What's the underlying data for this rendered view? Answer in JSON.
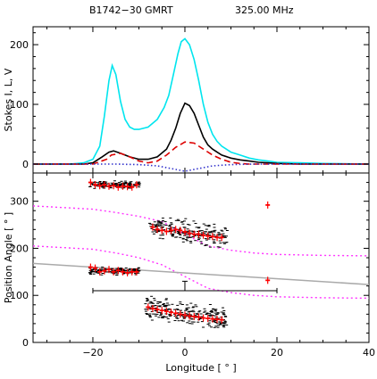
{
  "header": {
    "pulsar": "B1742−30",
    "telescope": "GMRT",
    "frequency": "325.00 MHz"
  },
  "colors": {
    "stokes_i": "#00e5ee",
    "linear": "#000000",
    "circular": "#dd0000",
    "dotted": "#3333cc",
    "pa_points": "#ff0000",
    "model_curves": "#ff33ff",
    "fit_line": "#aaaaaa"
  },
  "chart_data": [
    {
      "type": "line",
      "panel": "profile",
      "xlim": [
        -33,
        40
      ],
      "ylim": [
        -15,
        230
      ],
      "ylabel": "Stokes I, L, V",
      "yticks": [
        0,
        100,
        200
      ],
      "xticks": [
        -20,
        0,
        20,
        40
      ],
      "series": [
        {
          "key": "I",
          "x": [
            -33,
            -25,
            -22,
            -20,
            -18.5,
            -17.5,
            -16.5,
            -15.8,
            -15,
            -14,
            -13,
            -12,
            -11,
            -10,
            -8,
            -6,
            -4.5,
            -3.5,
            -2.5,
            -1.5,
            -0.8,
            0,
            1,
            2,
            3,
            4,
            5,
            6,
            7,
            8,
            9,
            10,
            12,
            14,
            16,
            18,
            20,
            25,
            30,
            40
          ],
          "y": [
            0,
            0,
            2,
            8,
            30,
            80,
            140,
            165,
            150,
            105,
            75,
            62,
            58,
            58,
            62,
            75,
            95,
            115,
            150,
            185,
            205,
            210,
            200,
            175,
            140,
            100,
            70,
            50,
            38,
            30,
            25,
            20,
            15,
            10,
            7,
            5,
            3,
            2,
            1,
            0
          ]
        },
        {
          "key": "L",
          "x": [
            -33,
            -22,
            -20,
            -18,
            -16.5,
            -15.5,
            -14,
            -12,
            -10,
            -8,
            -6,
            -4,
            -3,
            -2,
            -1,
            0,
            1,
            2,
            3,
            4,
            5,
            6,
            7,
            8,
            10,
            12,
            14,
            16,
            18,
            20,
            25,
            30,
            40
          ],
          "y": [
            0,
            0,
            2,
            12,
            20,
            22,
            18,
            12,
            8,
            8,
            12,
            25,
            40,
            60,
            85,
            102,
            98,
            85,
            65,
            45,
            32,
            25,
            20,
            15,
            10,
            7,
            5,
            3,
            2,
            1,
            0,
            0,
            0
          ]
        },
        {
          "key": "V",
          "x": [
            -33,
            -20,
            -17,
            -16,
            -14,
            -12,
            -10,
            -8,
            -6,
            -4,
            -2,
            0,
            2,
            4,
            6,
            8,
            10,
            12,
            14,
            20,
            40
          ],
          "y": [
            0,
            0,
            8,
            15,
            18,
            12,
            5,
            2,
            5,
            15,
            28,
            37,
            35,
            25,
            15,
            8,
            3,
            1,
            0,
            0,
            0
          ]
        },
        {
          "key": "dotted",
          "x": [
            -33,
            -15,
            -10,
            -6,
            -4,
            -2,
            0,
            2,
            4,
            6,
            10,
            15,
            40
          ],
          "y": [
            0,
            0,
            -1,
            -3,
            -6,
            -9,
            -12,
            -9,
            -6,
            -3,
            -1,
            0,
            0
          ]
        }
      ]
    },
    {
      "type": "scatter",
      "panel": "position-angle",
      "xlim": [
        -33,
        40
      ],
      "ylim": [
        0,
        360
      ],
      "xlabel": "Longitude [ ° ]",
      "ylabel": "Position Angle [ ° ]",
      "yticks": [
        0,
        100,
        200,
        300
      ],
      "xticks": [
        -20,
        0,
        20,
        40
      ],
      "pa_points": [
        [
          -20.5,
          340
        ],
        [
          -19.5,
          335
        ],
        [
          -18.5,
          333
        ],
        [
          -17.5,
          335
        ],
        [
          -16.5,
          332
        ],
        [
          -15.5,
          333
        ],
        [
          -14.5,
          330
        ],
        [
          -13.5,
          332
        ],
        [
          -12.5,
          331
        ],
        [
          -11.5,
          330
        ],
        [
          -10.5,
          335
        ],
        [
          -20.5,
          160
        ],
        [
          -19.5,
          158
        ],
        [
          -18.5,
          150
        ],
        [
          -17.5,
          152
        ],
        [
          -16.5,
          155
        ],
        [
          -15.5,
          150
        ],
        [
          -14.5,
          153
        ],
        [
          -13.5,
          150
        ],
        [
          -12.5,
          148
        ],
        [
          -11.5,
          150
        ],
        [
          -10.5,
          150
        ],
        [
          -7,
          245
        ],
        [
          -6,
          240
        ],
        [
          -5,
          238
        ],
        [
          -4,
          236
        ],
        [
          -3,
          238
        ],
        [
          -2,
          240
        ],
        [
          -1,
          238
        ],
        [
          0,
          235
        ],
        [
          1,
          232
        ],
        [
          2,
          230
        ],
        [
          3,
          230
        ],
        [
          4,
          228
        ],
        [
          5,
          226
        ],
        [
          6,
          225
        ],
        [
          7,
          223
        ],
        [
          8,
          223
        ],
        [
          -8,
          75
        ],
        [
          -7,
          72
        ],
        [
          -6,
          70
        ],
        [
          -5,
          68
        ],
        [
          -4,
          66
        ],
        [
          -3,
          64
        ],
        [
          -2,
          62
        ],
        [
          -1,
          60
        ],
        [
          0,
          58
        ],
        [
          1,
          56
        ],
        [
          2,
          55
        ],
        [
          3,
          54
        ],
        [
          4,
          52
        ],
        [
          5,
          51
        ],
        [
          6,
          50
        ],
        [
          7,
          49
        ],
        [
          8,
          48
        ],
        [
          18,
          292
        ],
        [
          18,
          132
        ]
      ],
      "dist_clusters": [
        {
          "x0": -21,
          "x1": -10,
          "yc": 335,
          "h": 10
        },
        {
          "x0": -21,
          "x1": -10,
          "yc": 152,
          "h": 10
        },
        {
          "x0": -8,
          "x1": 9,
          "yc": 235,
          "h": 30
        },
        {
          "x0": -9,
          "x1": 9,
          "yc": 60,
          "h": 35
        }
      ],
      "model_curves": [
        {
          "x": [
            -33,
            -20,
            -15,
            -10,
            -5,
            0,
            5,
            10,
            15,
            20,
            30,
            40
          ],
          "y": [
            290,
            283,
            276,
            268,
            257,
            230,
            205,
            196,
            190,
            187,
            185,
            184
          ]
        },
        {
          "x": [
            -33,
            -20,
            -15,
            -10,
            -5,
            0,
            5,
            10,
            15,
            20,
            30,
            40
          ],
          "y": [
            205,
            198,
            190,
            180,
            165,
            140,
            115,
            106,
            100,
            97,
            95,
            94
          ]
        }
      ],
      "fit_line": {
        "x": [
          -33,
          40
        ],
        "y": [
          168,
          123
        ]
      },
      "bracket": {
        "x0": -20,
        "x1": 20,
        "y": 110,
        "xc": 0,
        "ytop": 130
      }
    }
  ]
}
